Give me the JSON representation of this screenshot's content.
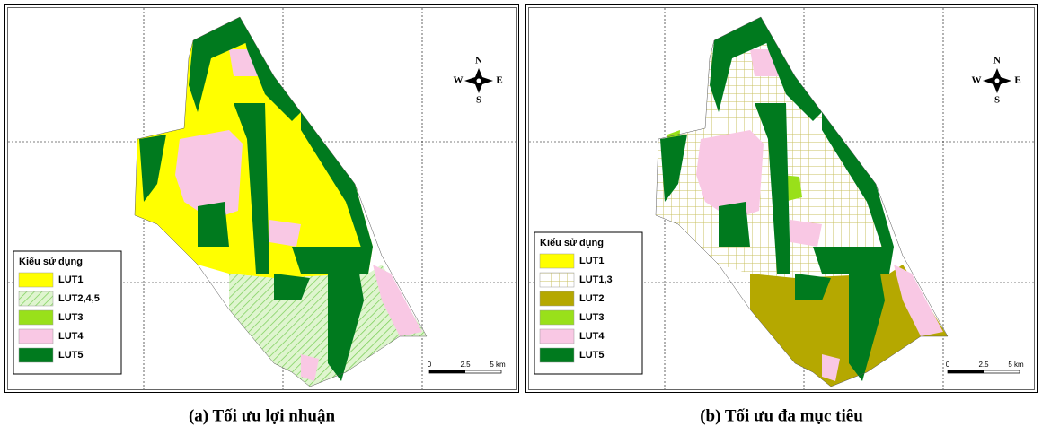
{
  "panels": [
    {
      "caption": "(a) Tối ưu lợi nhuận",
      "legend": {
        "title": "Kiểu sử dụng",
        "items": [
          "LUT1",
          "LUT2,4,5",
          "LUT3",
          "LUT4",
          "LUT5"
        ]
      },
      "compass": {
        "n": "N",
        "s": "S",
        "w": "W",
        "e": "E"
      },
      "scale": [
        "0",
        "2.5",
        "5 km"
      ]
    },
    {
      "caption": "(b) Tối ưu đa mục tiêu",
      "legend": {
        "title": "Kiểu sử dụng",
        "items": [
          "LUT1",
          "LUT1,3",
          "LUT2",
          "LUT3",
          "LUT4",
          "LUT5"
        ]
      },
      "compass": {
        "n": "N",
        "s": "S",
        "w": "W",
        "e": "E"
      },
      "scale": [
        "0",
        "2.5",
        "5 km"
      ]
    }
  ]
}
